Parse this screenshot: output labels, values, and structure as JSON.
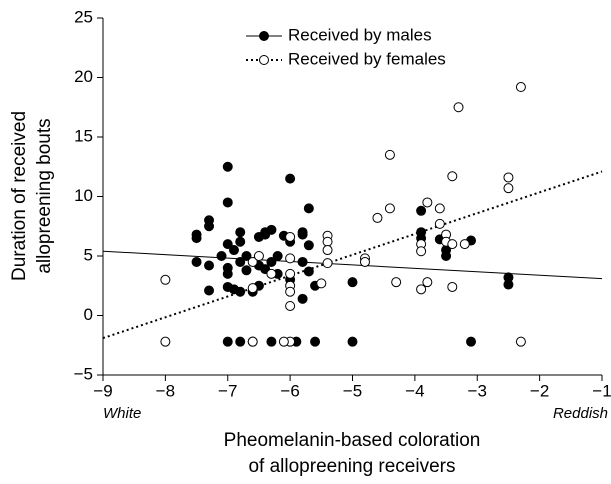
{
  "chart_data": {
    "type": "scatter",
    "xlabel": [
      "Pheomelanin-based coloration",
      "of allopreening receivers"
    ],
    "ylabel": [
      "Duration of received",
      "allopreening bouts"
    ],
    "annotations": [
      "White",
      "Reddish"
    ],
    "xlim": [
      -9,
      -1
    ],
    "xticks": [
      {
        "value": -9,
        "label": "−9"
      },
      {
        "value": -8,
        "label": "−8"
      },
      {
        "value": -7,
        "label": "−7"
      },
      {
        "value": -6,
        "label": "−6"
      },
      {
        "value": -5,
        "label": "−5"
      },
      {
        "value": -4,
        "label": "−4"
      },
      {
        "value": -3,
        "label": "−3"
      },
      {
        "value": -2,
        "label": "−2"
      },
      {
        "value": -1,
        "label": "−1"
      }
    ],
    "ylim": [
      -5,
      25
    ],
    "yticks": [
      {
        "value": -5,
        "label": "−5"
      },
      0,
      5,
      10,
      15,
      20,
      25
    ],
    "legend": "top",
    "series": [
      {
        "name": "Received by males",
        "color": "#000000",
        "filled": true,
        "line_style": "solid",
        "trend": {
          "x": [
            -9,
            -1
          ],
          "y": [
            5.4,
            3.1
          ]
        },
        "x": [
          -7.5,
          -7.5,
          -7.5,
          -7.3,
          -7.3,
          -7.3,
          -7.3,
          -7.1,
          -7.0,
          -7.0,
          -7.0,
          -7.0,
          -7.0,
          -7.0,
          -6.9,
          -6.9,
          -6.8,
          -6.8,
          -6.8,
          -6.8,
          -6.7,
          -6.7,
          -6.6,
          -6.6,
          -6.5,
          -6.5,
          -6.5,
          -6.4,
          -6.4,
          -6.4,
          -6.3,
          -6.3,
          -6.3,
          -6.2,
          -6.2,
          -6.1,
          -6.0,
          -6.0,
          -6.0,
          -5.9,
          -5.8,
          -5.8,
          -5.8,
          -5.8,
          -5.7,
          -5.7,
          -5.7,
          -5.6,
          -5.6,
          -5.0,
          -5.0,
          -3.9,
          -3.9,
          -3.9,
          -3.6,
          -3.5,
          -3.5,
          -3.1,
          -3.1,
          -2.5,
          -2.5,
          -6.8,
          -7.0
        ],
        "values": [
          6.8,
          6.5,
          4.5,
          8.0,
          7.5,
          4.2,
          2.1,
          5.0,
          12.5,
          9.5,
          6.0,
          4.0,
          3.5,
          2.4,
          5.5,
          2.2,
          7.0,
          6.2,
          4.5,
          2.0,
          5.0,
          3.8,
          2.0,
          -2.2,
          6.6,
          4.2,
          2.5,
          7.0,
          6.8,
          3.9,
          4.5,
          7.2,
          -2.2,
          5.0,
          3.5,
          6.7,
          11.5,
          6.2,
          3.0,
          -2.2,
          6.8,
          7.0,
          4.5,
          1.4,
          9.0,
          5.9,
          3.7,
          2.5,
          -2.2,
          2.8,
          -2.2,
          8.8,
          7.0,
          6.5,
          6.4,
          5.0,
          5.5,
          6.3,
          -2.2,
          3.2,
          2.6,
          -2.2,
          -2.2
        ]
      },
      {
        "name": "Received by females",
        "color": "#000000",
        "filled": false,
        "line_style": "dotted",
        "trend": {
          "x": [
            -9,
            -1
          ],
          "y": [
            -1.9,
            12.1
          ]
        },
        "x": [
          -8.0,
          -8.0,
          -6.6,
          -6.6,
          -6.6,
          -6.5,
          -6.3,
          -6.0,
          -6.0,
          -6.0,
          -6.0,
          -6.0,
          -6.0,
          -6.0,
          -6.1,
          -5.5,
          -5.4,
          -5.4,
          -5.4,
          -5.4,
          -4.8,
          -4.8,
          -4.6,
          -4.4,
          -4.4,
          -4.3,
          -3.9,
          -3.9,
          -3.9,
          -3.8,
          -3.8,
          -3.6,
          -3.6,
          -3.5,
          -3.5,
          -3.4,
          -3.4,
          -3.4,
          -3.3,
          -3.2,
          -2.5,
          -2.5,
          -2.3,
          -2.3
        ],
        "values": [
          3.0,
          -2.2,
          4.5,
          2.3,
          -2.2,
          5.0,
          3.5,
          6.6,
          4.8,
          3.5,
          2.5,
          2.0,
          0.8,
          -2.2,
          -2.2,
          2.7,
          6.7,
          6.2,
          5.5,
          4.4,
          4.8,
          4.5,
          8.2,
          13.5,
          9.0,
          2.8,
          6.0,
          5.4,
          2.2,
          9.5,
          2.8,
          9.0,
          7.7,
          6.8,
          6.2,
          11.7,
          6.0,
          2.4,
          17.5,
          6.0,
          11.6,
          10.7,
          19.2,
          -2.2
        ]
      }
    ]
  }
}
